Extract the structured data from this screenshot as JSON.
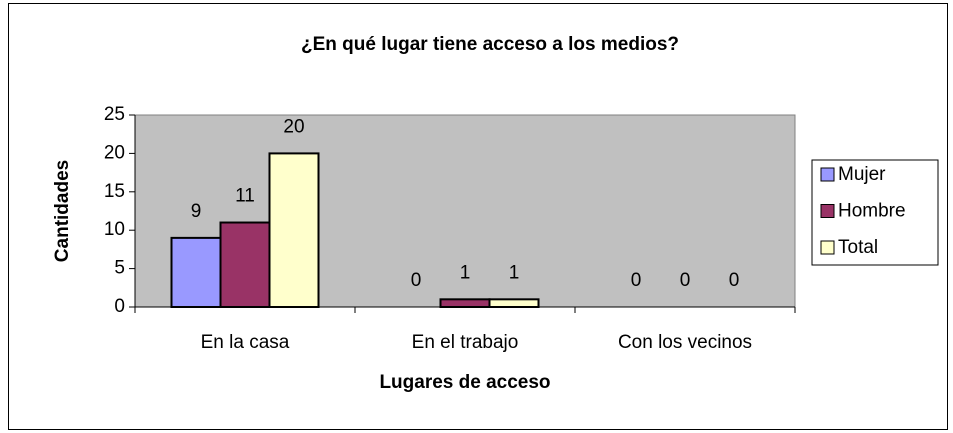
{
  "chart_data": {
    "type": "bar",
    "title": "¿En qué lugar tiene acceso a los medios?",
    "x_label": "Lugares de acceso",
    "y_label": "Cantidades",
    "categories": [
      "En la casa",
      "En el trabajo",
      "Con los vecinos"
    ],
    "series": [
      {
        "name": "Mujer",
        "color": "#9999ff",
        "values": [
          9,
          0,
          0
        ]
      },
      {
        "name": "Hombre",
        "color": "#993366",
        "values": [
          11,
          1,
          0
        ]
      },
      {
        "name": "Total",
        "color": "#ffffcc",
        "values": [
          20,
          1,
          0
        ]
      }
    ],
    "ylim": [
      0,
      25
    ],
    "yticks": [
      0,
      5,
      10,
      15,
      20,
      25
    ],
    "grid": false,
    "legend": "right",
    "plot_background": "#c0c0c0"
  }
}
